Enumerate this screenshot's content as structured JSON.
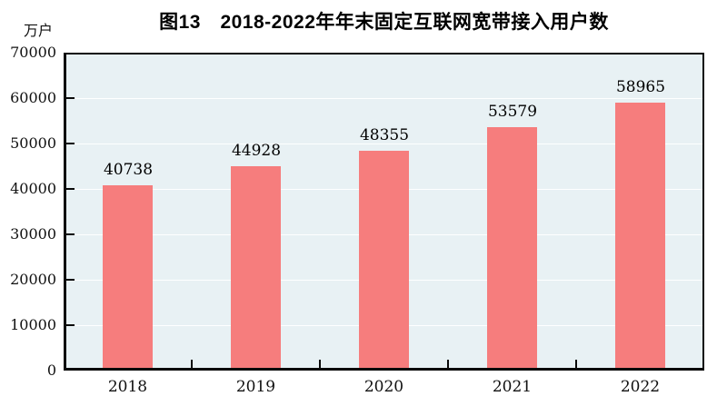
{
  "chart_data": {
    "type": "bar",
    "title": "图13　2018-2022年年末固定互联网宽带接入用户数",
    "unit_label": "万户",
    "categories": [
      "2018",
      "2019",
      "2020",
      "2021",
      "2022"
    ],
    "values": [
      40738,
      44928,
      48355,
      53579,
      58965
    ],
    "data_labels": [
      "40738",
      "44928",
      "48355",
      "53579",
      "58965"
    ],
    "ylim": [
      0,
      70000
    ],
    "yticks": [
      0,
      10000,
      20000,
      30000,
      40000,
      50000,
      60000,
      70000
    ],
    "grid": "horizontal-white-on",
    "legend": "none",
    "colors": {
      "bar": "#f67d7d",
      "plot_background": "#e8f1f4",
      "axis": "#0a0a0a",
      "gridline": "#ffffff",
      "text": "#000000"
    }
  }
}
